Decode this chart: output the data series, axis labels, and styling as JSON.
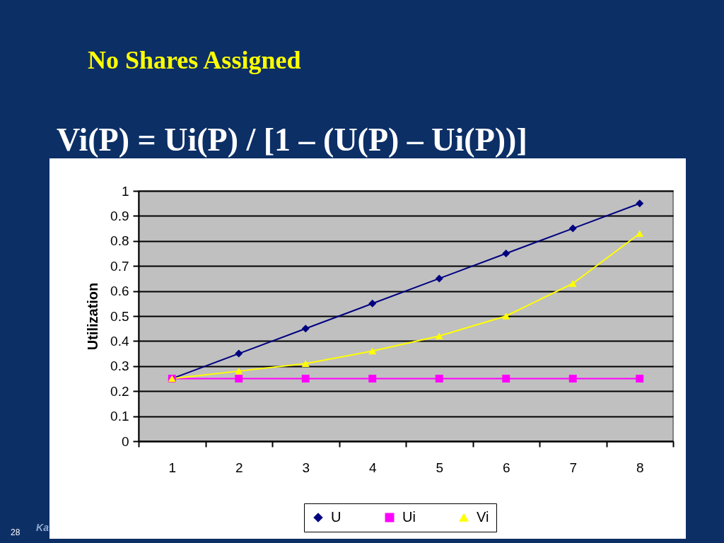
{
  "chart_data": {
    "type": "line",
    "title": "No Shares Assigned",
    "subtitle": "Vi(P) = Ui(P) / [1 – (U(P) – Ui(P))]",
    "ylabel": "Utilization",
    "categories": [
      "1",
      "2",
      "3",
      "4",
      "5",
      "6",
      "7",
      "8"
    ],
    "series": [
      {
        "name": "U",
        "color": "#000080",
        "marker": "diamond",
        "values": [
          0.25,
          0.35,
          0.45,
          0.55,
          0.65,
          0.75,
          0.85,
          0.95
        ]
      },
      {
        "name": "Ui",
        "color": "#ff00ff",
        "marker": "square",
        "values": [
          0.25,
          0.25,
          0.25,
          0.25,
          0.25,
          0.25,
          0.25,
          0.25
        ]
      },
      {
        "name": "Vi",
        "color": "#ffff00",
        "marker": "triangle",
        "values": [
          0.25,
          0.28,
          0.31,
          0.36,
          0.42,
          0.5,
          0.63,
          0.83
        ]
      }
    ],
    "ylim": [
      0,
      1
    ],
    "yticks": [
      0,
      0.1,
      0.2,
      0.3,
      0.4,
      0.5,
      0.6,
      0.7,
      0.8,
      0.9,
      1
    ],
    "grid": "y",
    "legend": "bottom",
    "line_style": "solid",
    "annotations": [
      "28",
      "Ka"
    ]
  }
}
